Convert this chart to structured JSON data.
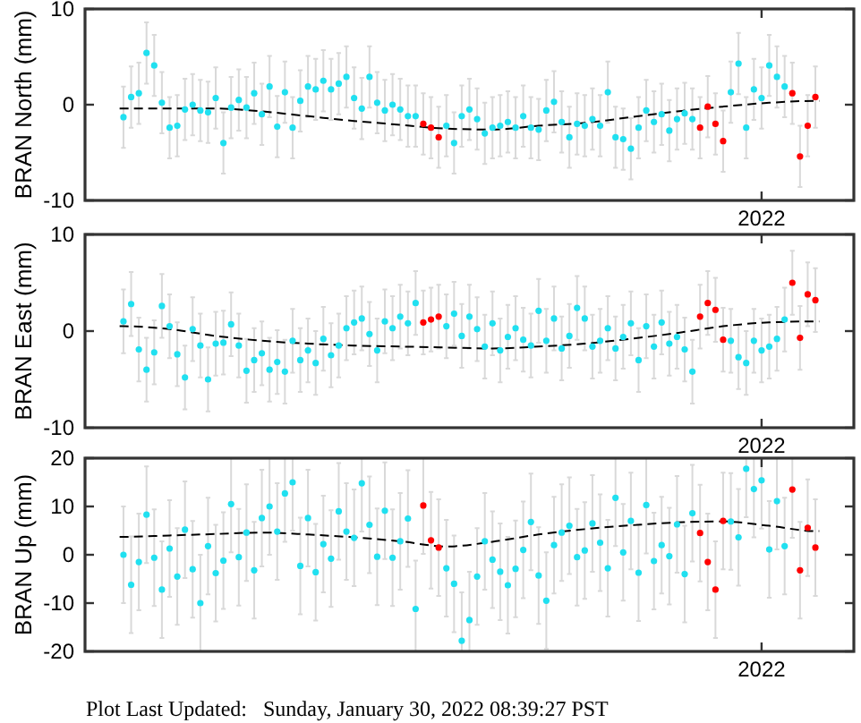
{
  "chart_data": [
    {
      "type": "scatter",
      "ylabel": "BRAN North (mm)",
      "ylim": [
        -10,
        10
      ],
      "yticks": [
        -10,
        0,
        10
      ],
      "categories": [
        null,
        null,
        null,
        null,
        null,
        null,
        null,
        null,
        null,
        null,
        null,
        null,
        null,
        null,
        null,
        null,
        null,
        null,
        null,
        null,
        null,
        null,
        null,
        null,
        null,
        null,
        null,
        null,
        null,
        null,
        null,
        null,
        null,
        null,
        null,
        null,
        null,
        null,
        null,
        null,
        null,
        null,
        null,
        null,
        null,
        null,
        null,
        null,
        null,
        null,
        null,
        null,
        null,
        null,
        null,
        null,
        null,
        null,
        null,
        null,
        null,
        null,
        null,
        null,
        null,
        null,
        null,
        null,
        null,
        null,
        null,
        null,
        null,
        null,
        null,
        null,
        null,
        null,
        null,
        null,
        null,
        null,
        null,
        "2022",
        null,
        null,
        null,
        null,
        null,
        null,
        null
      ],
      "series": [
        {
          "type": "scatter",
          "color": "#20e0f0",
          "marker": "circle",
          "values": [
            -1.3,
            0.8,
            1.2,
            5.4,
            4.1,
            0.2,
            -2.4,
            -2.2,
            -0.5,
            0.0,
            -0.6,
            -0.8,
            0.7,
            -4.0,
            -0.3,
            0.5,
            -0.3,
            1.2,
            -1.0,
            1.9,
            -2.3,
            1.3,
            -2.4,
            0.4,
            1.9,
            1.6,
            2.5,
            1.6,
            2.2,
            2.9,
            0.7,
            -0.4,
            2.9,
            0.2,
            -0.6,
            0.0,
            -0.5,
            -1.2,
            -1.2,
            null,
            null,
            null,
            -2.2,
            -4.0,
            -1.2,
            -0.5,
            -1.5,
            -3.0,
            -2.4,
            -2.2,
            -1.8,
            -2.4,
            -1.2,
            -2.4,
            -2.6,
            -0.6,
            0.3,
            -1.8,
            -3.4,
            -2.0,
            -2.2,
            -1.5,
            -2.2,
            1.3,
            -3.4,
            -3.6,
            -4.6,
            -2.4,
            -0.6,
            -1.8,
            -1.0,
            -2.7,
            -1.5,
            -0.9,
            -1.5,
            null,
            null,
            null,
            null,
            1.3,
            4.3,
            -2.4,
            1.6,
            0.7,
            4.1,
            2.9,
            1.9,
            null,
            null,
            null,
            null
          ],
          "errors": [
            3.2,
            3.2,
            3.2,
            3.2,
            3.2,
            3.2,
            3.2,
            3.2,
            3.2,
            3.2,
            3.2,
            3.2,
            3.2,
            3.2,
            3.2,
            3.2,
            3.2,
            3.2,
            3.2,
            3.2,
            3.2,
            3.2,
            3.2,
            3.2,
            3.2,
            3.2,
            3.2,
            3.2,
            3.2,
            3.2,
            3.2,
            3.2,
            3.2,
            3.2,
            3.2,
            3.2,
            3.2,
            3.2,
            3.2,
            null,
            null,
            null,
            3.2,
            3.2,
            3.2,
            3.2,
            3.2,
            3.2,
            3.2,
            3.2,
            3.2,
            3.2,
            3.2,
            3.2,
            3.2,
            3.2,
            3.2,
            3.2,
            3.2,
            3.2,
            3.2,
            3.2,
            3.2,
            3.2,
            3.2,
            3.2,
            3.2,
            3.2,
            3.2,
            3.2,
            3.2,
            3.2,
            3.2,
            3.2,
            3.2,
            null,
            null,
            null,
            null,
            3.2,
            3.2,
            3.2,
            3.2,
            3.2,
            3.2,
            3.2,
            3.2,
            null,
            null,
            null,
            null
          ]
        },
        {
          "type": "scatter",
          "color": "#ff0000",
          "marker": "circle",
          "values": [
            null,
            null,
            null,
            null,
            null,
            null,
            null,
            null,
            null,
            null,
            null,
            null,
            null,
            null,
            null,
            null,
            null,
            null,
            null,
            null,
            null,
            null,
            null,
            null,
            null,
            null,
            null,
            null,
            null,
            null,
            null,
            null,
            null,
            null,
            null,
            null,
            null,
            null,
            null,
            -2.0,
            -2.4,
            -3.4,
            null,
            null,
            null,
            null,
            null,
            null,
            null,
            null,
            null,
            null,
            null,
            null,
            null,
            null,
            null,
            null,
            null,
            null,
            null,
            null,
            null,
            null,
            null,
            null,
            null,
            null,
            null,
            null,
            null,
            null,
            null,
            null,
            null,
            -2.4,
            -0.2,
            -2.0,
            -3.8,
            null,
            null,
            null,
            null,
            null,
            null,
            null,
            null,
            1.2,
            -5.4,
            -2.2,
            0.8
          ],
          "errors": [
            null,
            null,
            null,
            null,
            null,
            null,
            null,
            null,
            null,
            null,
            null,
            null,
            null,
            null,
            null,
            null,
            null,
            null,
            null,
            null,
            null,
            null,
            null,
            null,
            null,
            null,
            null,
            null,
            null,
            null,
            null,
            null,
            null,
            null,
            null,
            null,
            null,
            null,
            null,
            3.2,
            3.2,
            3.2,
            null,
            null,
            null,
            null,
            null,
            null,
            null,
            null,
            null,
            null,
            null,
            null,
            null,
            null,
            null,
            null,
            null,
            null,
            null,
            null,
            null,
            null,
            null,
            null,
            null,
            null,
            null,
            null,
            null,
            null,
            null,
            null,
            null,
            3.2,
            3.2,
            3.2,
            3.2,
            null,
            null,
            null,
            null,
            null,
            null,
            null,
            null,
            3.2,
            3.2,
            3.2,
            3.2
          ]
        },
        {
          "type": "line",
          "color": "#000000",
          "line_style": "dashed",
          "marker": "none",
          "values": [
            -0.4,
            null,
            null,
            null,
            null,
            null,
            -0.4,
            null,
            null,
            null,
            null,
            null,
            -0.4,
            null,
            null,
            null,
            null,
            null,
            -0.7,
            null,
            null,
            null,
            null,
            null,
            -1.2,
            null,
            null,
            null,
            null,
            null,
            -1.7,
            null,
            null,
            null,
            null,
            null,
            -2.1,
            null,
            null,
            null,
            null,
            null,
            -2.5,
            null,
            null,
            null,
            null,
            null,
            -2.6,
            null,
            null,
            null,
            null,
            null,
            -2.2,
            null,
            null,
            null,
            null,
            null,
            -1.9,
            null,
            null,
            null,
            null,
            null,
            -1.3,
            null,
            null,
            null,
            null,
            null,
            -0.7,
            null,
            null,
            null,
            null,
            null,
            -0.2,
            null,
            null,
            null,
            null,
            null,
            0.2,
            null,
            null,
            null,
            null,
            null,
            0.4
          ]
        }
      ]
    },
    {
      "type": "scatter",
      "ylabel": "BRAN East (mm)",
      "ylim": [
        -10,
        10
      ],
      "yticks": [
        -10,
        0,
        10
      ],
      "categories": [
        null,
        null,
        null,
        null,
        null,
        null,
        null,
        null,
        null,
        null,
        null,
        null,
        null,
        null,
        null,
        null,
        null,
        null,
        null,
        null,
        null,
        null,
        null,
        null,
        null,
        null,
        null,
        null,
        null,
        null,
        null,
        null,
        null,
        null,
        null,
        null,
        null,
        null,
        null,
        null,
        null,
        null,
        null,
        null,
        null,
        null,
        null,
        null,
        null,
        null,
        null,
        null,
        null,
        null,
        null,
        null,
        null,
        null,
        null,
        null,
        null,
        null,
        null,
        null,
        null,
        null,
        null,
        null,
        null,
        null,
        null,
        null,
        null,
        null,
        null,
        null,
        null,
        null,
        null,
        null,
        null,
        null,
        null,
        "2022",
        null,
        null,
        null,
        null,
        null,
        null,
        null
      ],
      "series": [
        {
          "type": "scatter",
          "color": "#20e0f0",
          "marker": "circle",
          "values": [
            1.0,
            2.8,
            -1.9,
            -4.0,
            -2.2,
            2.6,
            0.5,
            -2.4,
            -4.8,
            0.2,
            -1.5,
            -5.0,
            -1.3,
            -1.2,
            0.7,
            -1.5,
            -4.1,
            -3.0,
            -2.3,
            -4.0,
            -3.2,
            -4.2,
            -1.0,
            -3.0,
            -2.0,
            -3.3,
            -0.8,
            -2.5,
            -1.5,
            0.3,
            0.9,
            1.3,
            -0.3,
            -2.0,
            1.0,
            0.3,
            1.5,
            0.8,
            2.9,
            null,
            null,
            null,
            0.5,
            1.8,
            -0.5,
            1.5,
            0.2,
            -1.6,
            0.8,
            -2.0,
            -0.6,
            0.3,
            -0.9,
            -1.5,
            2.1,
            -1.0,
            1.3,
            -1.8,
            -0.5,
            2.4,
            1.3,
            -1.6,
            -1.0,
            0.3,
            -1.8,
            -0.6,
            0.8,
            -3.0,
            0.5,
            -1.6,
            0.9,
            -1.3,
            -0.6,
            -1.9,
            -4.2,
            null,
            null,
            null,
            null,
            -1.0,
            -2.7,
            -3.3,
            -1.0,
            -2.0,
            -1.6,
            -0.8,
            1.2,
            null,
            null,
            null,
            null
          ],
          "errors": [
            3.3,
            3.3,
            3.3,
            3.3,
            3.3,
            3.3,
            3.3,
            3.3,
            3.3,
            3.3,
            3.3,
            3.3,
            3.3,
            3.3,
            3.3,
            3.3,
            3.3,
            3.3,
            3.3,
            3.3,
            3.3,
            3.3,
            3.3,
            3.3,
            3.3,
            3.3,
            3.3,
            3.3,
            3.3,
            3.3,
            3.3,
            3.3,
            3.3,
            3.3,
            3.3,
            3.3,
            3.3,
            3.3,
            3.3,
            null,
            null,
            null,
            3.3,
            3.3,
            3.3,
            3.3,
            3.3,
            3.3,
            3.3,
            3.3,
            3.3,
            3.3,
            3.3,
            3.3,
            3.3,
            3.3,
            3.3,
            3.3,
            3.3,
            3.3,
            3.3,
            3.3,
            3.3,
            3.3,
            3.3,
            3.3,
            3.3,
            3.3,
            3.3,
            3.3,
            3.3,
            3.3,
            3.3,
            3.3,
            3.3,
            null,
            null,
            null,
            null,
            3.3,
            3.3,
            3.3,
            3.3,
            3.3,
            3.3,
            3.3,
            3.3,
            null,
            null,
            null,
            null
          ]
        },
        {
          "type": "scatter",
          "color": "#ff0000",
          "marker": "circle",
          "values": [
            null,
            null,
            null,
            null,
            null,
            null,
            null,
            null,
            null,
            null,
            null,
            null,
            null,
            null,
            null,
            null,
            null,
            null,
            null,
            null,
            null,
            null,
            null,
            null,
            null,
            null,
            null,
            null,
            null,
            null,
            null,
            null,
            null,
            null,
            null,
            null,
            null,
            null,
            null,
            0.9,
            1.2,
            1.5,
            null,
            null,
            null,
            null,
            null,
            null,
            null,
            null,
            null,
            null,
            null,
            null,
            null,
            null,
            null,
            null,
            null,
            null,
            null,
            null,
            null,
            null,
            null,
            null,
            null,
            null,
            null,
            null,
            null,
            null,
            null,
            null,
            null,
            1.5,
            2.9,
            2.2,
            -0.9,
            null,
            null,
            null,
            null,
            null,
            null,
            null,
            null,
            5.0,
            -0.7,
            3.8,
            3.2
          ],
          "errors": [
            null,
            null,
            null,
            null,
            null,
            null,
            null,
            null,
            null,
            null,
            null,
            null,
            null,
            null,
            null,
            null,
            null,
            null,
            null,
            null,
            null,
            null,
            null,
            null,
            null,
            null,
            null,
            null,
            null,
            null,
            null,
            null,
            null,
            null,
            null,
            null,
            null,
            null,
            null,
            3.3,
            3.3,
            3.3,
            null,
            null,
            null,
            null,
            null,
            null,
            null,
            null,
            null,
            null,
            null,
            null,
            null,
            null,
            null,
            null,
            null,
            null,
            null,
            null,
            null,
            null,
            null,
            null,
            null,
            null,
            null,
            null,
            null,
            null,
            null,
            null,
            null,
            3.3,
            3.3,
            3.3,
            3.3,
            null,
            null,
            null,
            null,
            null,
            null,
            null,
            null,
            3.3,
            3.3,
            3.3,
            3.3
          ]
        },
        {
          "type": "line",
          "color": "#000000",
          "line_style": "dashed",
          "marker": "none",
          "values": [
            0.5,
            null,
            null,
            null,
            null,
            null,
            0.2,
            null,
            null,
            null,
            null,
            null,
            -0.5,
            null,
            null,
            null,
            null,
            null,
            -1.0,
            null,
            null,
            null,
            null,
            null,
            -1.3,
            null,
            null,
            null,
            null,
            null,
            -1.5,
            null,
            null,
            null,
            null,
            null,
            -1.6,
            null,
            null,
            null,
            null,
            null,
            -1.7,
            null,
            null,
            null,
            null,
            null,
            -1.8,
            null,
            null,
            null,
            null,
            null,
            -1.6,
            null,
            null,
            null,
            null,
            null,
            -1.3,
            null,
            null,
            null,
            null,
            null,
            -0.8,
            null,
            null,
            null,
            null,
            null,
            -0.2,
            null,
            null,
            null,
            null,
            null,
            0.5,
            null,
            null,
            null,
            null,
            null,
            0.9,
            null,
            null,
            null,
            null,
            null,
            1.0
          ]
        }
      ]
    },
    {
      "type": "scatter",
      "ylabel": "BRAN Up (mm)",
      "ylim": [
        -20,
        20
      ],
      "yticks": [
        -20,
        -10,
        0,
        10,
        20
      ],
      "annotations": [
        "Plot Last Updated:   Sunday, January 30, 2022 08:39:27 PST"
      ],
      "categories": [
        null,
        null,
        null,
        null,
        null,
        null,
        null,
        null,
        null,
        null,
        null,
        null,
        null,
        null,
        null,
        null,
        null,
        null,
        null,
        null,
        null,
        null,
        null,
        null,
        null,
        null,
        null,
        null,
        null,
        null,
        null,
        null,
        null,
        null,
        null,
        null,
        null,
        null,
        null,
        null,
        null,
        null,
        null,
        null,
        null,
        null,
        null,
        null,
        null,
        null,
        null,
        null,
        null,
        null,
        null,
        null,
        null,
        null,
        null,
        null,
        null,
        null,
        null,
        null,
        null,
        null,
        null,
        null,
        null,
        null,
        null,
        null,
        null,
        null,
        null,
        null,
        null,
        null,
        null,
        null,
        null,
        null,
        null,
        "2022",
        null,
        null,
        null,
        null,
        null,
        null,
        null
      ],
      "series": [
        {
          "type": "scatter",
          "color": "#20e0f0",
          "marker": "circle",
          "values": [
            0.0,
            -6.2,
            -1.5,
            8.3,
            -0.6,
            -7.2,
            1.3,
            -4.5,
            5.2,
            -3.0,
            -10.0,
            1.8,
            -3.8,
            -1.2,
            10.5,
            -0.5,
            4.6,
            -3.2,
            7.6,
            10.0,
            4.8,
            12.7,
            15.0,
            -2.3,
            7.6,
            -3.6,
            2.2,
            -0.8,
            9.0,
            4.8,
            3.5,
            14.8,
            6.2,
            -0.4,
            9.1,
            -0.6,
            2.8,
            7.5,
            -11.2,
            null,
            null,
            null,
            -2.8,
            -6.0,
            -17.8,
            -13.5,
            -4.5,
            2.8,
            -1.0,
            -3.5,
            -6.3,
            -2.9,
            1.0,
            6.8,
            -4.3,
            -9.5,
            2.0,
            4.6,
            6.0,
            -0.5,
            0.9,
            6.5,
            2.5,
            -2.8,
            11.8,
            0.5,
            7.0,
            -3.7,
            10.3,
            -1.3,
            2.0,
            -0.3,
            6.3,
            -4.0,
            8.6,
            null,
            null,
            null,
            null,
            6.9,
            3.6,
            17.8,
            13.6,
            15.4,
            1.1,
            11.1,
            1.8,
            null,
            null,
            null,
            null
          ],
          "errors": [
            10,
            10,
            10,
            10,
            10,
            10,
            10,
            10,
            10,
            10,
            10,
            10,
            10,
            10,
            [
              0.5,
              20
            ],
            10,
            10,
            10,
            10,
            10,
            10,
            [
              2.7,
              20
            ],
            [
              5,
              20
            ],
            10,
            10,
            10,
            10,
            10,
            10,
            10,
            10,
            [
              4.8,
              20
            ],
            10,
            10,
            10,
            10,
            10,
            10,
            [
              -20,
              -1.2
            ],
            null,
            null,
            null,
            10,
            10,
            [
              -20,
              -7.8
            ],
            [
              -20,
              -3.5
            ],
            10,
            10,
            10,
            10,
            10,
            10,
            10,
            10,
            10,
            10,
            10,
            10,
            10,
            10,
            10,
            10,
            10,
            10,
            [
              1.8,
              20
            ],
            10,
            10,
            10,
            [
              0.3,
              20
            ],
            10,
            10,
            10,
            10,
            10,
            10,
            null,
            null,
            null,
            null,
            10,
            10,
            [
              7.8,
              20
            ],
            [
              3.6,
              20
            ],
            [
              5.4,
              20
            ],
            10,
            [
              1.1,
              20
            ],
            10,
            null,
            null,
            null,
            null
          ]
        },
        {
          "type": "scatter",
          "color": "#ff0000",
          "marker": "circle",
          "values": [
            null,
            null,
            null,
            null,
            null,
            null,
            null,
            null,
            null,
            null,
            null,
            null,
            null,
            null,
            null,
            null,
            null,
            null,
            null,
            null,
            null,
            null,
            null,
            null,
            null,
            null,
            null,
            null,
            null,
            null,
            null,
            null,
            null,
            null,
            null,
            null,
            null,
            null,
            null,
            10.2,
            3.0,
            1.5,
            null,
            null,
            null,
            null,
            null,
            null,
            null,
            null,
            null,
            null,
            null,
            null,
            null,
            null,
            null,
            null,
            null,
            null,
            null,
            null,
            null,
            null,
            null,
            null,
            null,
            null,
            null,
            null,
            null,
            null,
            null,
            null,
            null,
            4.5,
            -1.5,
            -7.2,
            7.0,
            null,
            null,
            null,
            null,
            null,
            null,
            null,
            null,
            13.5,
            -3.2,
            5.6,
            1.5
          ],
          "errors": [
            null,
            null,
            null,
            null,
            null,
            null,
            null,
            null,
            null,
            null,
            null,
            null,
            null,
            null,
            null,
            null,
            null,
            null,
            null,
            null,
            null,
            null,
            null,
            null,
            null,
            null,
            null,
            null,
            null,
            null,
            null,
            null,
            null,
            null,
            null,
            null,
            null,
            null,
            null,
            [
              0.2,
              20
            ],
            10,
            10,
            null,
            null,
            null,
            null,
            null,
            null,
            null,
            null,
            null,
            null,
            null,
            null,
            null,
            null,
            null,
            null,
            null,
            null,
            null,
            null,
            null,
            null,
            null,
            null,
            null,
            null,
            null,
            null,
            null,
            null,
            null,
            null,
            null,
            10,
            10,
            10,
            10,
            null,
            null,
            null,
            null,
            null,
            null,
            null,
            null,
            [
              3.5,
              20
            ],
            10,
            10,
            10
          ]
        },
        {
          "type": "line",
          "color": "#000000",
          "line_style": "dashed",
          "marker": "none",
          "values": [
            3.7,
            null,
            null,
            null,
            null,
            null,
            4.0,
            null,
            null,
            null,
            null,
            null,
            4.3,
            null,
            null,
            null,
            null,
            null,
            4.6,
            null,
            null,
            null,
            null,
            null,
            4.2,
            null,
            null,
            null,
            null,
            null,
            3.6,
            null,
            null,
            null,
            null,
            null,
            2.8,
            null,
            null,
            null,
            null,
            null,
            1.7,
            null,
            null,
            null,
            null,
            null,
            2.7,
            null,
            null,
            null,
            null,
            null,
            4.2,
            null,
            null,
            null,
            null,
            null,
            5.3,
            null,
            null,
            null,
            null,
            null,
            6.1,
            null,
            null,
            null,
            null,
            null,
            6.7,
            null,
            null,
            null,
            null,
            null,
            6.9,
            null,
            null,
            null,
            null,
            null,
            6.0,
            null,
            null,
            null,
            null,
            null,
            4.9
          ]
        }
      ]
    }
  ]
}
